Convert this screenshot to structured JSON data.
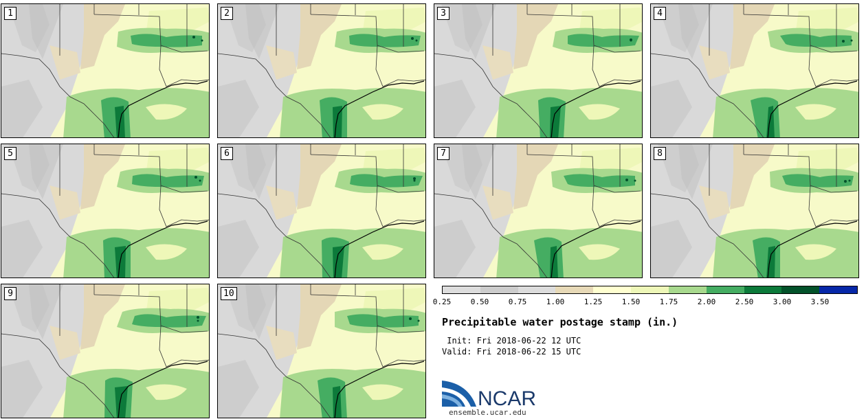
{
  "figure": {
    "title": "Precipitable water postage stamp (in.)",
    "init_label": " Init:",
    "init_value": "Fri 2018-06-22 12 UTC",
    "valid_label": "Valid:",
    "valid_value": "Fri 2018-06-22 15 UTC",
    "branding": {
      "logo_text": "NCAR",
      "url": "ensemble.ucar.edu"
    }
  },
  "members": [
    "1",
    "2",
    "3",
    "4",
    "5",
    "6",
    "7",
    "8",
    "9",
    "10"
  ],
  "colorbar": {
    "unit": "in.",
    "ticks": [
      "0.25",
      "0.50",
      "0.75",
      "1.00",
      "1.25",
      "1.50",
      "1.75",
      "2.00",
      "2.50",
      "3.00",
      "3.50"
    ],
    "colors": [
      "#dddddd",
      "#cccccc",
      "#dcdcdc",
      "#e7d9b7",
      "#ffffd0",
      "#eef7b8",
      "#a8d98e",
      "#45ad62",
      "#0c7a3a",
      "#03522a",
      "#0627a8"
    ]
  }
}
